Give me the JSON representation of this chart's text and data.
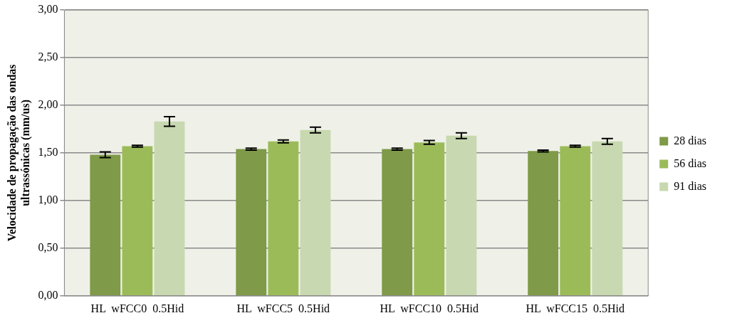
{
  "chart_data": {
    "type": "bar",
    "ylabel": "Velocidade de propagação das ondas ultrassónicas (mm/us)",
    "categories": [
      "HL  wFCC0  0.5Hid",
      "HL  wFCC5  0.5Hid",
      "HL  wFCC10  0.5Hid",
      "HL  wFCC15  0.5Hid"
    ],
    "series": [
      {
        "name": "28 dias",
        "color": "#7f9a48",
        "values": [
          1.48,
          1.54,
          1.54,
          1.52
        ],
        "errors": [
          0.03,
          0.01,
          0.01,
          0.01
        ]
      },
      {
        "name": "56 dias",
        "color": "#9bbb59",
        "values": [
          1.57,
          1.62,
          1.61,
          1.57
        ],
        "errors": [
          0.01,
          0.015,
          0.02,
          0.01
        ]
      },
      {
        "name": "91 dias",
        "color": "#c8d8b0",
        "values": [
          1.83,
          1.74,
          1.68,
          1.62
        ],
        "errors": [
          0.05,
          0.03,
          0.03,
          0.03
        ]
      }
    ],
    "ylim": [
      0,
      3
    ],
    "yticks": [
      {
        "value": 0,
        "label": "0,00"
      },
      {
        "value": 0.5,
        "label": "0,50"
      },
      {
        "value": 1,
        "label": "1,00"
      },
      {
        "value": 1.5,
        "label": "1,50"
      },
      {
        "value": 2,
        "label": "2,00"
      },
      {
        "value": 2.5,
        "label": "2,50"
      },
      {
        "value": 3,
        "label": "3,00"
      }
    ],
    "grid": "y",
    "legend": "right"
  }
}
